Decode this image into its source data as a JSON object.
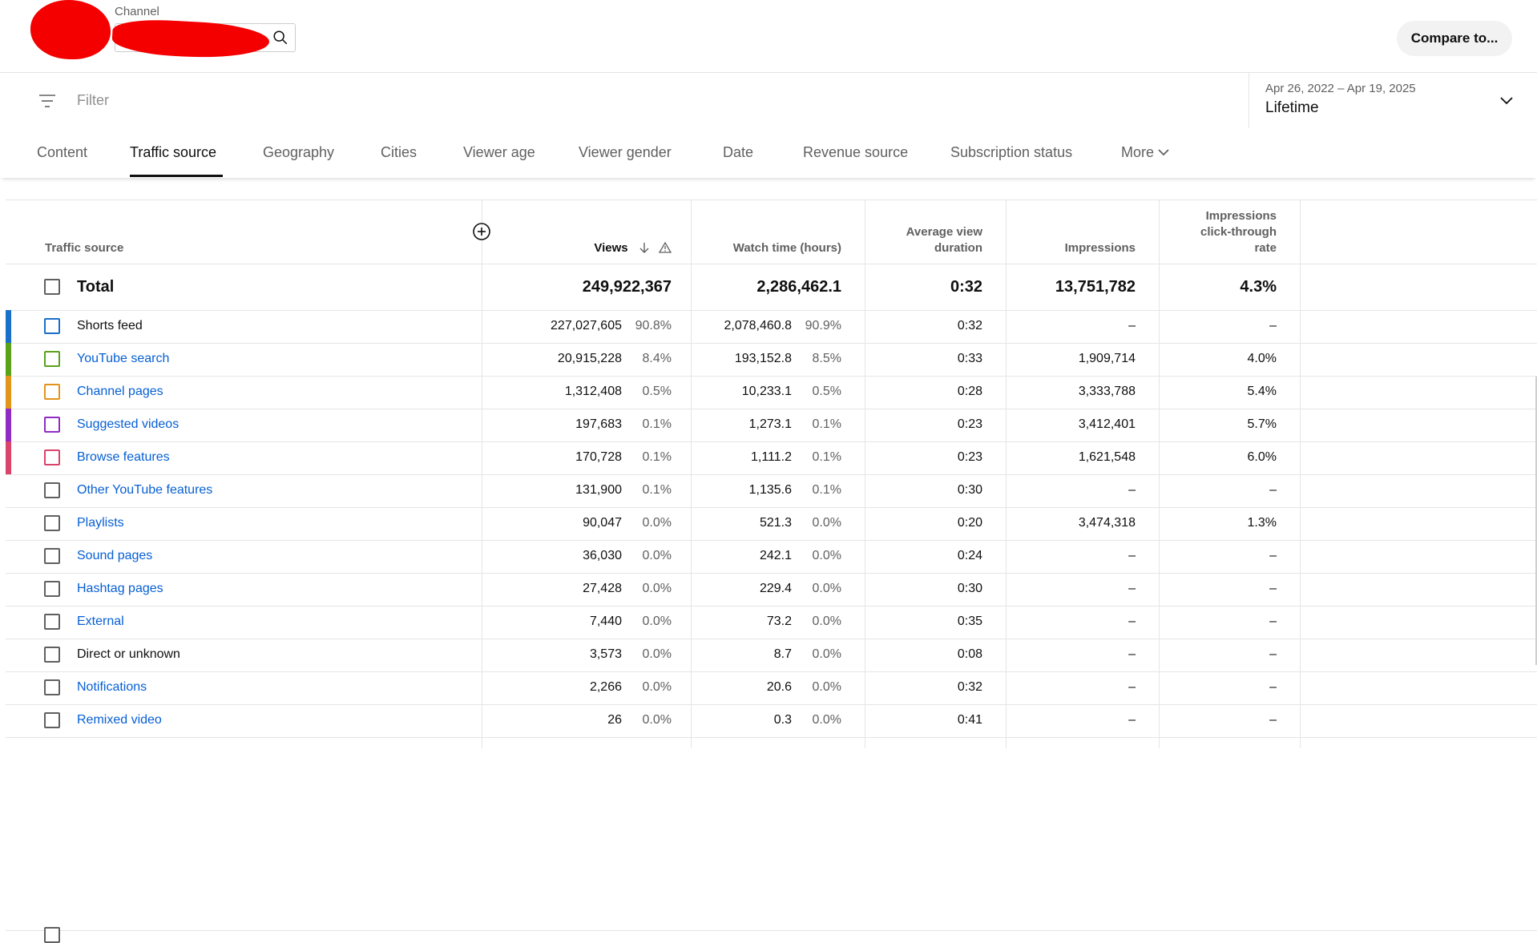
{
  "header": {
    "channel_label": "Channel",
    "compare_label": "Compare to..."
  },
  "filter": {
    "placeholder": "Filter",
    "date_range": "Apr 26, 2022 – Apr 19, 2025",
    "period": "Lifetime"
  },
  "tabs": [
    {
      "label": "Content"
    },
    {
      "label": "Traffic source",
      "active": true
    },
    {
      "label": "Geography"
    },
    {
      "label": "Cities"
    },
    {
      "label": "Viewer age"
    },
    {
      "label": "Viewer gender"
    },
    {
      "label": "Date"
    },
    {
      "label": "Revenue source"
    },
    {
      "label": "Subscription status"
    },
    {
      "label": "More"
    }
  ],
  "table": {
    "columns": {
      "source": "Traffic source",
      "views": "Views",
      "watch_time": "Watch time (hours)",
      "avg_duration_1": "Average view",
      "avg_duration_2": "duration",
      "impressions": "Impressions",
      "ctr_1": "Impressions",
      "ctr_2": "click-through",
      "ctr_3": "rate"
    },
    "total": {
      "label": "Total",
      "views": "249,922,367",
      "watch_time": "2,286,462.1",
      "avg_duration": "0:32",
      "impressions": "13,751,782",
      "ctr": "4.3%"
    },
    "rows": [
      {
        "source": "Shorts feed",
        "link": false,
        "color": "#1a6fc9",
        "views": "227,027,605",
        "views_pct": "90.8%",
        "watch_time": "2,078,460.8",
        "watch_pct": "90.9%",
        "avg_duration": "0:32",
        "impressions": "–",
        "ctr": "–"
      },
      {
        "source": "YouTube search",
        "link": true,
        "color": "#5aa21a",
        "views": "20,915,228",
        "views_pct": "8.4%",
        "watch_time": "193,152.8",
        "watch_pct": "8.5%",
        "avg_duration": "0:33",
        "impressions": "1,909,714",
        "ctr": "4.0%"
      },
      {
        "source": "Channel pages",
        "link": true,
        "color": "#e3941a",
        "views": "1,312,408",
        "views_pct": "0.5%",
        "watch_time": "10,233.1",
        "watch_pct": "0.5%",
        "avg_duration": "0:28",
        "impressions": "3,333,788",
        "ctr": "5.4%"
      },
      {
        "source": "Suggested videos",
        "link": true,
        "color": "#8f2cc4",
        "views": "197,683",
        "views_pct": "0.1%",
        "watch_time": "1,273.1",
        "watch_pct": "0.1%",
        "avg_duration": "0:23",
        "impressions": "3,412,401",
        "ctr": "5.7%"
      },
      {
        "source": "Browse features",
        "link": true,
        "color": "#d9446a",
        "views": "170,728",
        "views_pct": "0.1%",
        "watch_time": "1,111.2",
        "watch_pct": "0.1%",
        "avg_duration": "0:23",
        "impressions": "1,621,548",
        "ctr": "6.0%"
      },
      {
        "source": "Other YouTube features",
        "link": true,
        "color": "",
        "views": "131,900",
        "views_pct": "0.1%",
        "watch_time": "1,135.6",
        "watch_pct": "0.1%",
        "avg_duration": "0:30",
        "impressions": "–",
        "ctr": "–"
      },
      {
        "source": "Playlists",
        "link": true,
        "color": "",
        "views": "90,047",
        "views_pct": "0.0%",
        "watch_time": "521.3",
        "watch_pct": "0.0%",
        "avg_duration": "0:20",
        "impressions": "3,474,318",
        "ctr": "1.3%"
      },
      {
        "source": "Sound pages",
        "link": true,
        "color": "",
        "views": "36,030",
        "views_pct": "0.0%",
        "watch_time": "242.1",
        "watch_pct": "0.0%",
        "avg_duration": "0:24",
        "impressions": "–",
        "ctr": "–"
      },
      {
        "source": "Hashtag pages",
        "link": true,
        "color": "",
        "views": "27,428",
        "views_pct": "0.0%",
        "watch_time": "229.4",
        "watch_pct": "0.0%",
        "avg_duration": "0:30",
        "impressions": "–",
        "ctr": "–"
      },
      {
        "source": "External",
        "link": true,
        "color": "",
        "views": "7,440",
        "views_pct": "0.0%",
        "watch_time": "73.2",
        "watch_pct": "0.0%",
        "avg_duration": "0:35",
        "impressions": "–",
        "ctr": "–"
      },
      {
        "source": "Direct or unknown",
        "link": false,
        "color": "",
        "views": "3,573",
        "views_pct": "0.0%",
        "watch_time": "8.7",
        "watch_pct": "0.0%",
        "avg_duration": "0:08",
        "impressions": "–",
        "ctr": "–"
      },
      {
        "source": "Notifications",
        "link": true,
        "color": "",
        "views": "2,266",
        "views_pct": "0.0%",
        "watch_time": "20.6",
        "watch_pct": "0.0%",
        "avg_duration": "0:32",
        "impressions": "–",
        "ctr": "–"
      },
      {
        "source": "Remixed video",
        "link": true,
        "color": "",
        "views": "26",
        "views_pct": "0.0%",
        "watch_time": "0.3",
        "watch_pct": "0.0%",
        "avg_duration": "0:41",
        "impressions": "–",
        "ctr": "–"
      }
    ]
  }
}
